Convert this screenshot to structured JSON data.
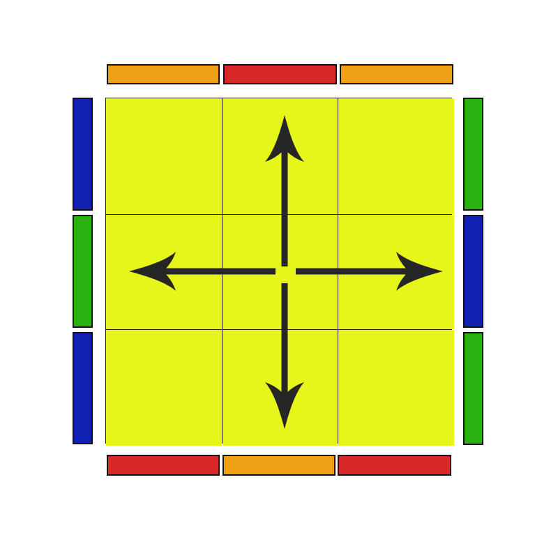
{
  "colors": {
    "face": "#e6f51a",
    "orange": "#f0a015",
    "red": "#d92828",
    "blue": "#1020b0",
    "green": "#2ab010",
    "arrow": "#262626"
  },
  "face": {
    "color_name": "yellow",
    "cells": [
      "yellow",
      "yellow",
      "yellow",
      "yellow",
      "yellow",
      "yellow",
      "yellow",
      "yellow",
      "yellow"
    ]
  },
  "side_strips": {
    "top": [
      "orange",
      "red",
      "orange"
    ],
    "bottom": [
      "red",
      "orange",
      "red"
    ],
    "left": [
      "blue",
      "green",
      "blue"
    ],
    "right": [
      "green",
      "blue",
      "green"
    ]
  },
  "arrows": {
    "directions": [
      "up",
      "down",
      "left",
      "right"
    ],
    "arrow_icon": "four-way-arrow-icon"
  }
}
